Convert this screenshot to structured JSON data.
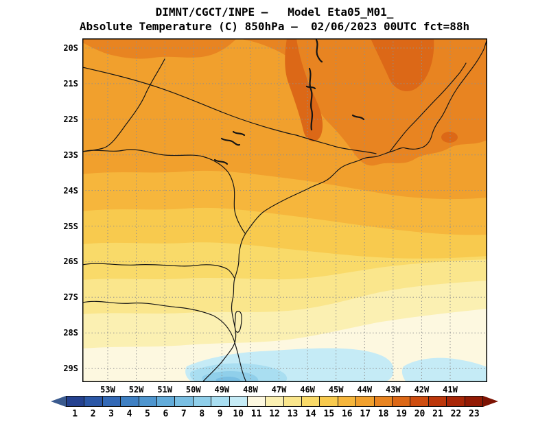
{
  "header": {
    "line1": "DIMNT/CGCT/INPE —   Model Eta05_M01_",
    "line2": "Absolute Temperature (C) 850hPa —  02/06/2023 00UTC fct=88h"
  },
  "map": {
    "y_axis_labels": [
      "20S",
      "21S",
      "22S",
      "23S",
      "24S",
      "25S",
      "26S",
      "27S",
      "28S",
      "29S"
    ],
    "x_axis_labels": [
      "53W",
      "52W",
      "51W",
      "50W",
      "49W",
      "48W",
      "47W",
      "46W",
      "45W",
      "44W",
      "43W",
      "42W",
      "41W"
    ]
  },
  "colorbar": {
    "labels": [
      "1",
      "2",
      "3",
      "4",
      "5",
      "6",
      "7",
      "8",
      "9",
      "10",
      "11",
      "12",
      "13",
      "14",
      "15",
      "16",
      "17",
      "18",
      "19",
      "20",
      "21",
      "22",
      "23"
    ],
    "colors": [
      "#24418F",
      "#2B57A6",
      "#3369B6",
      "#3F80C3",
      "#4F96CF",
      "#63ACDA",
      "#7ABFE3",
      "#90CFEA",
      "#A9DEF1",
      "#C5EBF6",
      "#FDF8E0",
      "#FBF0B2",
      "#FAE68C",
      "#F9DA69",
      "#F8CA4E",
      "#F6B63C",
      "#F1A02D",
      "#E88421",
      "#DC6817",
      "#CE4D10",
      "#BC370B",
      "#A82607",
      "#921A04"
    ],
    "arrow_left_color": "#3A5A8E",
    "arrow_right_color": "#7D1303"
  },
  "chart_data": {
    "type": "heatmap",
    "title": "Absolute Temperature (C) 850hPa",
    "institution": "DIMNT/CGCT/INPE",
    "model": "Eta05_M01_",
    "valid": "02/06/2023 00UTC",
    "forecast": "fct=88h",
    "units": "C",
    "lat_ticks": [
      "20S",
      "21S",
      "22S",
      "23S",
      "24S",
      "25S",
      "26S",
      "27S",
      "28S",
      "29S"
    ],
    "lon_ticks": [
      "53W",
      "52W",
      "51W",
      "50W",
      "49W",
      "48W",
      "47W",
      "46W",
      "45W",
      "44W",
      "43W",
      "42W",
      "41W"
    ],
    "colorbar_values": [
      1,
      2,
      3,
      4,
      5,
      6,
      7,
      8,
      9,
      10,
      11,
      12,
      13,
      14,
      15,
      16,
      17,
      18,
      19,
      20,
      21,
      22,
      23
    ],
    "grid": "dotted, 1 degree spacing",
    "legend_position": "bottom",
    "approx_field": [
      {
        "region": "north 20S-22S",
        "value_range": [
          17,
          19
        ]
      },
      {
        "region": "central 22S-24S",
        "value_range": [
          16,
          17
        ]
      },
      {
        "region": "24S-26S",
        "value_range": [
          14,
          15
        ]
      },
      {
        "region": "26S-28S",
        "value_range": [
          12,
          13
        ]
      },
      {
        "region": "28S-29S interior",
        "value_range": [
          11,
          12
        ]
      },
      {
        "region": "far south coast ~29S",
        "value_range": [
          7,
          10
        ]
      }
    ]
  }
}
